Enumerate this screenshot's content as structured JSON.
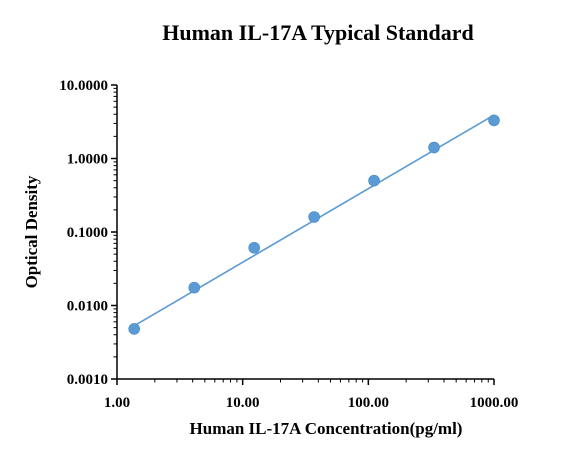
{
  "chart_data": {
    "type": "scatter",
    "title": "Human IL-17A Typical Standard",
    "xlabel": "Human IL-17A Concentration(pg/ml)",
    "ylabel": "Optical Density",
    "xscale": "log",
    "yscale": "log",
    "xlim": [
      1,
      1000
    ],
    "ylim": [
      0.001,
      10
    ],
    "x_ticks": [
      1,
      10,
      100,
      1000
    ],
    "x_tick_labels": [
      "1.00",
      "10.00",
      "100.00",
      "1000.00"
    ],
    "y_ticks": [
      0.001,
      0.01,
      0.1,
      1,
      10
    ],
    "y_tick_labels": [
      "0.0010",
      "0.0100",
      "0.1000",
      "1.0000",
      "10.0000"
    ],
    "grid": false,
    "legend": false,
    "series": [
      {
        "x": [
          1.37,
          4.12,
          12.35,
          37.04,
          111.11,
          333.33,
          1000
        ],
        "y": [
          0.0048,
          0.0175,
          0.061,
          0.16,
          0.5,
          1.41,
          3.3
        ],
        "marker_color": "#5b9bd5"
      }
    ],
    "fit_line": {
      "x": [
        1.37,
        1000
      ],
      "y": [
        0.0053,
        3.9
      ],
      "color": "#5b9bd5"
    }
  }
}
